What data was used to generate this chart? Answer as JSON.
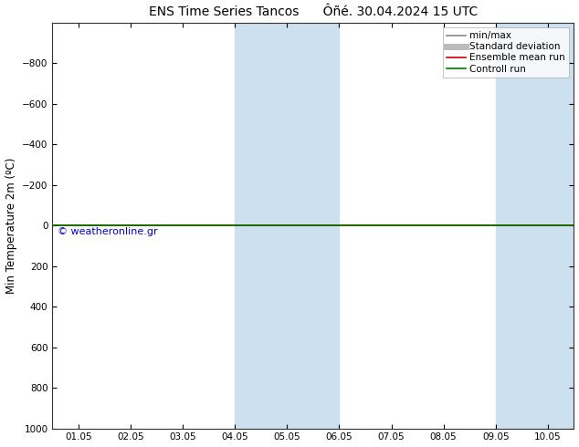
{
  "title": "ENS Time Series Tancos      Ôñé. 30.04.2024 15 UTC",
  "ylabel": "Min Temperature 2m (ºC)",
  "xlim_dates": [
    "01.05",
    "02.05",
    "03.05",
    "04.05",
    "05.05",
    "06.05",
    "07.05",
    "08.05",
    "09.05",
    "10.05"
  ],
  "ylim": [
    -1000,
    1000
  ],
  "yticks": [
    -800,
    -600,
    -400,
    -200,
    0,
    200,
    400,
    600,
    800,
    1000
  ],
  "bg_color": "#ffffff",
  "plot_bg_color": "#ffffff",
  "shaded_bands": [
    {
      "xstart": 3.0,
      "xend": 5.0,
      "color": "#cce0f0"
    },
    {
      "xstart": 8.0,
      "xend": 9.5,
      "color": "#cce0f0"
    }
  ],
  "hline_y": 0,
  "hline_color_green": "#007700",
  "hline_color_red": "#cc0000",
  "copyright_text": "© weatheronline.gr",
  "copyright_color": "#0000cc",
  "legend_items": [
    {
      "label": "min/max",
      "color": "#888888",
      "lw": 1.2,
      "style": "-"
    },
    {
      "label": "Standard deviation",
      "color": "#bbbbbb",
      "lw": 5,
      "style": "-"
    },
    {
      "label": "Ensemble mean run",
      "color": "#cc0000",
      "lw": 1.2,
      "style": "-"
    },
    {
      "label": "Controll run",
      "color": "#007700",
      "lw": 1.2,
      "style": "-"
    }
  ],
  "title_fontsize": 10,
  "tick_fontsize": 7.5,
  "ylabel_fontsize": 8.5,
  "legend_fontsize": 7.5
}
